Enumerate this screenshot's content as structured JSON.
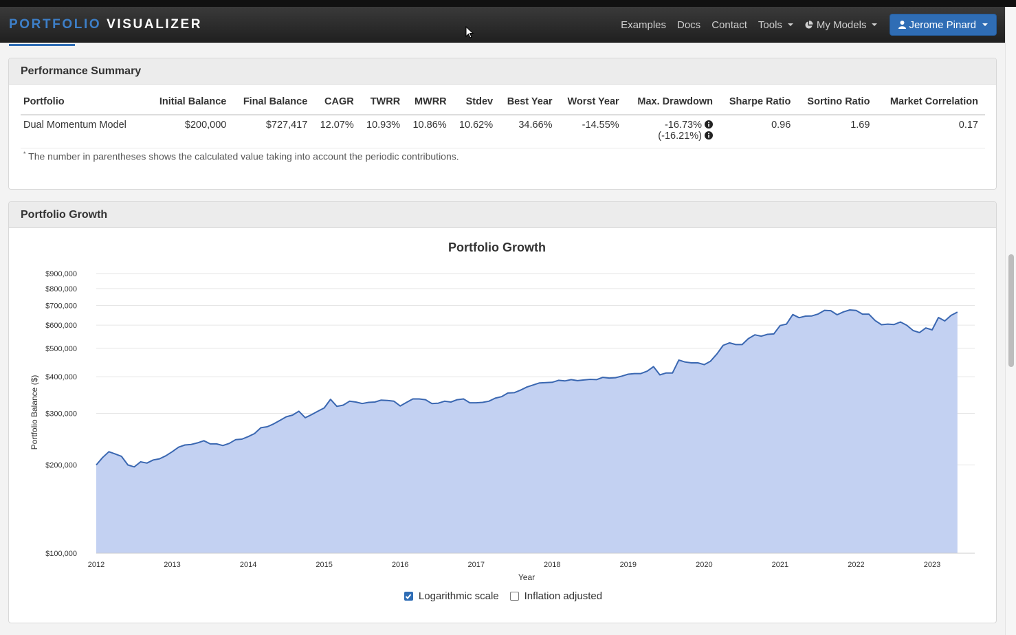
{
  "navbar": {
    "brand_part1": "PORTFOLIO",
    "brand_part2": "VISUALIZER",
    "links": [
      "Examples",
      "Docs",
      "Contact"
    ],
    "tools_label": "Tools",
    "models_label": "My Models",
    "user_label": "Jerome Pinard"
  },
  "performance": {
    "heading": "Performance Summary",
    "headers": [
      "Portfolio",
      "Initial Balance",
      "Final Balance",
      "CAGR",
      "TWRR",
      "MWRR",
      "Stdev",
      "Best Year",
      "Worst Year",
      "Max. Drawdown",
      "Sharpe Ratio",
      "Sortino Ratio",
      "Market Correlation"
    ],
    "row": {
      "portfolio": "Dual Momentum Model",
      "initial_balance": "$200,000",
      "final_balance": "$727,417",
      "cagr": "12.07%",
      "twrr": "10.93%",
      "mwrr": "10.86%",
      "stdev": "10.62%",
      "best_year": "34.66%",
      "worst_year": "-14.55%",
      "max_drawdown": "-16.73%",
      "max_drawdown_contrib": "(-16.21%)",
      "sharpe": "0.96",
      "sortino": "1.69",
      "market_corr": "0.17"
    },
    "footnote_mark": "*",
    "footnote": "The number in parentheses shows the calculated value taking into account the periodic contributions."
  },
  "growth": {
    "heading": "Portfolio Growth",
    "log_scale_label": "Logarithmic scale",
    "log_scale_checked": true,
    "inflation_label": "Inflation adjusted",
    "inflation_checked": false
  },
  "chart_data": {
    "type": "area",
    "title": "Portfolio Growth",
    "xlabel": "Year",
    "ylabel": "Portfolio Balance ($)",
    "y_scale": "log",
    "ylim": [
      100000,
      1000000
    ],
    "y_ticks": [
      100000,
      200000,
      300000,
      400000,
      500000,
      600000,
      700000,
      800000,
      900000
    ],
    "y_tick_labels": [
      "$100,000",
      "$200,000",
      "$300,000",
      "$400,000",
      "$500,000",
      "$600,000",
      "$700,000",
      "$800,000",
      "$900,000"
    ],
    "x_tick_labels": [
      "2012",
      "2013",
      "2014",
      "2015",
      "2016",
      "2017",
      "2018",
      "2019",
      "2020",
      "2021",
      "2022",
      "2023"
    ],
    "grid": true,
    "fill_color": "#c3d1f2",
    "line_color": "#3a67b1",
    "series": [
      {
        "x": [
          "2012-01",
          "2012-02",
          "2012-03",
          "2012-04",
          "2012-05",
          "2012-06",
          "2012-07",
          "2012-08",
          "2012-09",
          "2012-10",
          "2012-11",
          "2012-12",
          "2013-01",
          "2013-02",
          "2013-03",
          "2013-04",
          "2013-05",
          "2013-06",
          "2013-07",
          "2013-08",
          "2013-09",
          "2013-10",
          "2013-11",
          "2013-12",
          "2014-01",
          "2014-02",
          "2014-03",
          "2014-04",
          "2014-05",
          "2014-06",
          "2014-07",
          "2014-08",
          "2014-09",
          "2014-10",
          "2014-11",
          "2014-12",
          "2015-01",
          "2015-02",
          "2015-03",
          "2015-04",
          "2015-05",
          "2015-06",
          "2015-07",
          "2015-08",
          "2015-09",
          "2015-10",
          "2015-11",
          "2015-12",
          "2016-01",
          "2016-02",
          "2016-03",
          "2016-04",
          "2016-05",
          "2016-06",
          "2016-07",
          "2016-08",
          "2016-09",
          "2016-10",
          "2016-11",
          "2016-12",
          "2017-01",
          "2017-02",
          "2017-03",
          "2017-04",
          "2017-05",
          "2017-06",
          "2017-07",
          "2017-08",
          "2017-09",
          "2017-10",
          "2017-11",
          "2017-12",
          "2018-01",
          "2018-02",
          "2018-03",
          "2018-04",
          "2018-05",
          "2018-06",
          "2018-07",
          "2018-08",
          "2018-09",
          "2018-10",
          "2018-11",
          "2018-12",
          "2019-01",
          "2019-02",
          "2019-03",
          "2019-04",
          "2019-05",
          "2019-06",
          "2019-07",
          "2019-08",
          "2019-09",
          "2019-10",
          "2019-11",
          "2019-12",
          "2020-01",
          "2020-02",
          "2020-03",
          "2020-04",
          "2020-05",
          "2020-06",
          "2020-07",
          "2020-08",
          "2020-09",
          "2020-10",
          "2020-11",
          "2020-12",
          "2021-01",
          "2021-02",
          "2021-03",
          "2021-04",
          "2021-05",
          "2021-06",
          "2021-07",
          "2021-08",
          "2021-09",
          "2021-10",
          "2021-11",
          "2021-12",
          "2022-01",
          "2022-02",
          "2022-03",
          "2022-04",
          "2022-05",
          "2022-06",
          "2022-07",
          "2022-08",
          "2022-09",
          "2022-10",
          "2022-11",
          "2022-12",
          "2023-01",
          "2023-02",
          "2023-03",
          "2023-04",
          "2023-05"
        ],
        "values": [
          200000,
          212000,
          222000,
          218000,
          214000,
          200000,
          197000,
          205000,
          203000,
          208000,
          210000,
          215000,
          222000,
          230000,
          234000,
          235000,
          238000,
          242000,
          236000,
          236000,
          233000,
          237000,
          244000,
          245000,
          250000,
          256000,
          268000,
          270000,
          276000,
          284000,
          292000,
          296000,
          305000,
          290000,
          297000,
          305000,
          313000,
          335000,
          317000,
          320000,
          330000,
          328000,
          324000,
          327000,
          328000,
          333000,
          332000,
          330000,
          318000,
          327000,
          336000,
          336000,
          334000,
          324000,
          325000,
          330000,
          328000,
          334000,
          336000,
          326000,
          326000,
          327000,
          330000,
          338000,
          342000,
          352000,
          353000,
          360000,
          369000,
          375000,
          381000,
          382000,
          383000,
          389000,
          387000,
          391000,
          388000,
          390000,
          392000,
          391000,
          398000,
          396000,
          397000,
          402000,
          408000,
          410000,
          410000,
          418000,
          433000,
          406000,
          412000,
          412000,
          456000,
          449000,
          446000,
          446000,
          440000,
          452000,
          478000,
          512000,
          522000,
          515000,
          515000,
          540000,
          556000,
          550000,
          558000,
          560000,
          598000,
          605000,
          652000,
          636000,
          644000,
          645000,
          655000,
          674000,
          672000,
          651000,
          666000,
          676000,
          673000,
          654000,
          654000,
          622000,
          602000,
          605000,
          603000,
          615000,
          599000,
          575000,
          566000,
          587000,
          578000,
          637000,
          620000,
          648000,
          665000
        ]
      }
    ]
  }
}
